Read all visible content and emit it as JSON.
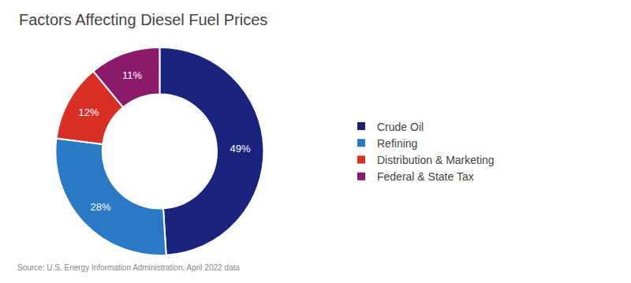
{
  "chart_data": {
    "type": "pie",
    "title": "Factors Affecting Diesel Fuel Prices",
    "categories": [
      "Crude Oil",
      "Refining",
      "Distribution & Marketing",
      "Federal & State Tax"
    ],
    "values": [
      49,
      28,
      12,
      11
    ],
    "value_labels": [
      "49%",
      "28%",
      "12%",
      "11%"
    ],
    "colors": [
      "#1a237e",
      "#2979c5",
      "#d93025",
      "#8b1a6b"
    ],
    "data_labels": true,
    "legend": "right",
    "annotations": [
      "Source: U.S. Energy Information Administration, April 2022 data"
    ]
  }
}
